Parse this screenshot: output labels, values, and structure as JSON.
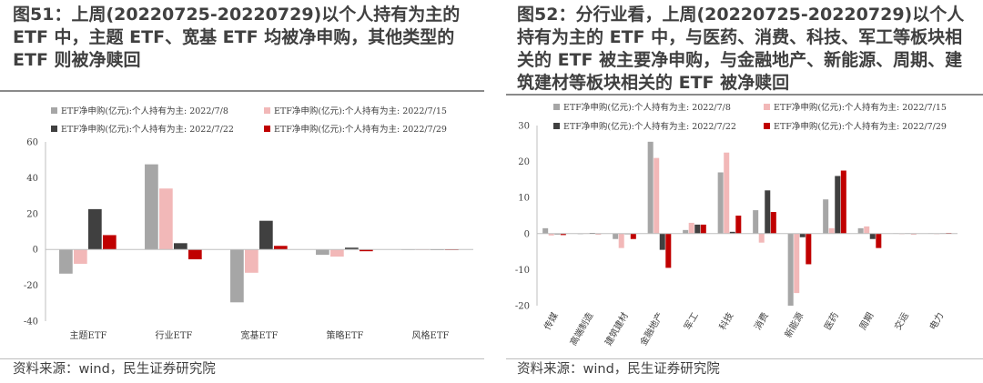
{
  "left": {
    "title": "图51：上周(20220725-20220729)以个人持有为主的 ETF 中，主题 ETF、宽基 ETF 均被净申购，其他类型的 ETF 则被净赎回",
    "source": "资料来源：wind，民生证券研究院"
  },
  "right": {
    "title": "图52：分行业看，上周(20220725-20220729)以个人持有为主的 ETF 中，与医药、消费、科技、军工等板块相关的 ETF 被主要净申购，与金融地产、新能源、周期、建筑建材等板块相关的 ETF 被净赎回",
    "source": "资料来源：wind，民生证券研究院"
  },
  "chart_data": [
    {
      "type": "bar",
      "categories": [
        "主题ETF",
        "行业ETF",
        "宽基ETF",
        "策略ETF",
        "风格ETF"
      ],
      "series": [
        {
          "name": "ETF净申购(亿元):个人持有为主: 2022/7/8",
          "color": "#a6a6a6",
          "values": [
            -13.5,
            47.5,
            -29.5,
            -3.0,
            -0.3
          ]
        },
        {
          "name": "ETF净申购(亿元):个人持有为主: 2022/7/15",
          "color": "#f2b8b8",
          "values": [
            -8.0,
            34.0,
            -13.0,
            -4.0,
            -0.2
          ]
        },
        {
          "name": "ETF净申购(亿元):个人持有为主: 2022/7/22",
          "color": "#404040",
          "values": [
            22.5,
            3.5,
            16.0,
            1.0,
            -0.2
          ]
        },
        {
          "name": "ETF净申购(亿元):个人持有为主: 2022/7/29",
          "color": "#c00000",
          "values": [
            8.0,
            -5.5,
            2.0,
            -1.0,
            -0.4
          ]
        }
      ],
      "ylim": [
        -40,
        60
      ],
      "yticks": [
        "-40",
        "-20",
        "0",
        "20",
        "40",
        "60"
      ],
      "yticks_values": [
        -40,
        -20,
        0,
        20,
        40,
        60
      ],
      "legend_position": "top"
    },
    {
      "type": "bar",
      "categories": [
        "传媒",
        "高端制造",
        "建筑建材",
        "金融地产",
        "军工",
        "科技",
        "消费",
        "新能源",
        "医药",
        "周期",
        "交运",
        "电力"
      ],
      "series": [
        {
          "name": "ETF净申购(亿元):个人持有为主: 2022/7/8",
          "color": "#a6a6a6",
          "values": [
            1.5,
            0.0,
            -1.5,
            25.5,
            1.0,
            17.0,
            6.5,
            -20.0,
            9.5,
            1.5,
            0.1,
            0.1
          ]
        },
        {
          "name": "ETF净申购(亿元):个人持有为主: 2022/7/15",
          "color": "#f2b8b8",
          "values": [
            -0.5,
            0.1,
            -4.0,
            21.0,
            3.0,
            22.5,
            -2.5,
            -16.5,
            1.5,
            2.0,
            0.0,
            0.0
          ]
        },
        {
          "name": "ETF净申购(亿元):个人持有为主: 2022/7/22",
          "color": "#404040",
          "values": [
            -0.2,
            0.2,
            0.0,
            -4.5,
            2.5,
            0.5,
            12.0,
            -1.0,
            16.0,
            -1.5,
            0.1,
            0.1
          ]
        },
        {
          "name": "ETF净申购(亿元):个人持有为主: 2022/7/29",
          "color": "#c00000",
          "values": [
            -0.4,
            0.0,
            -1.5,
            -9.5,
            2.5,
            5.0,
            6.0,
            -8.5,
            17.5,
            -4.0,
            0.0,
            0.2
          ]
        }
      ],
      "ylim": [
        -20,
        30
      ],
      "yticks": [
        "-20",
        "-10",
        "0",
        "10",
        "20",
        "30"
      ],
      "yticks_values": [
        -20,
        -10,
        0,
        10,
        20,
        30
      ],
      "legend_position": "top"
    }
  ]
}
